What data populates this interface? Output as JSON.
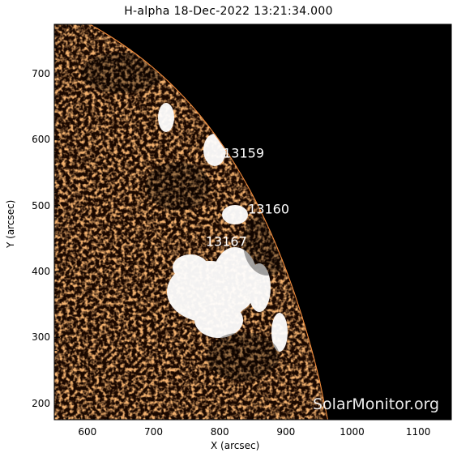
{
  "title": "H-alpha 18-Dec-2022 13:21:34.000",
  "x_axis": {
    "label": "X (arcsec)",
    "ticks": [
      "600",
      "700",
      "800",
      "900",
      "1000",
      "1100"
    ],
    "range": [
      550,
      1150
    ]
  },
  "y_axis": {
    "label": "Y (arcsec)",
    "ticks": [
      "700",
      "600",
      "500",
      "400",
      "300",
      "200"
    ],
    "range": [
      175,
      775
    ]
  },
  "regions": [
    {
      "number": "13159",
      "x": 836,
      "y": 580
    },
    {
      "number": "13160",
      "x": 874,
      "y": 495
    },
    {
      "number": "13167",
      "x": 810,
      "y": 445
    }
  ],
  "credit": "SolarMonitor.org",
  "colors": {
    "disk": "#e8742a",
    "disk_dark": "#2a0e00",
    "sky": "#000000",
    "plage": "#ffffff"
  }
}
